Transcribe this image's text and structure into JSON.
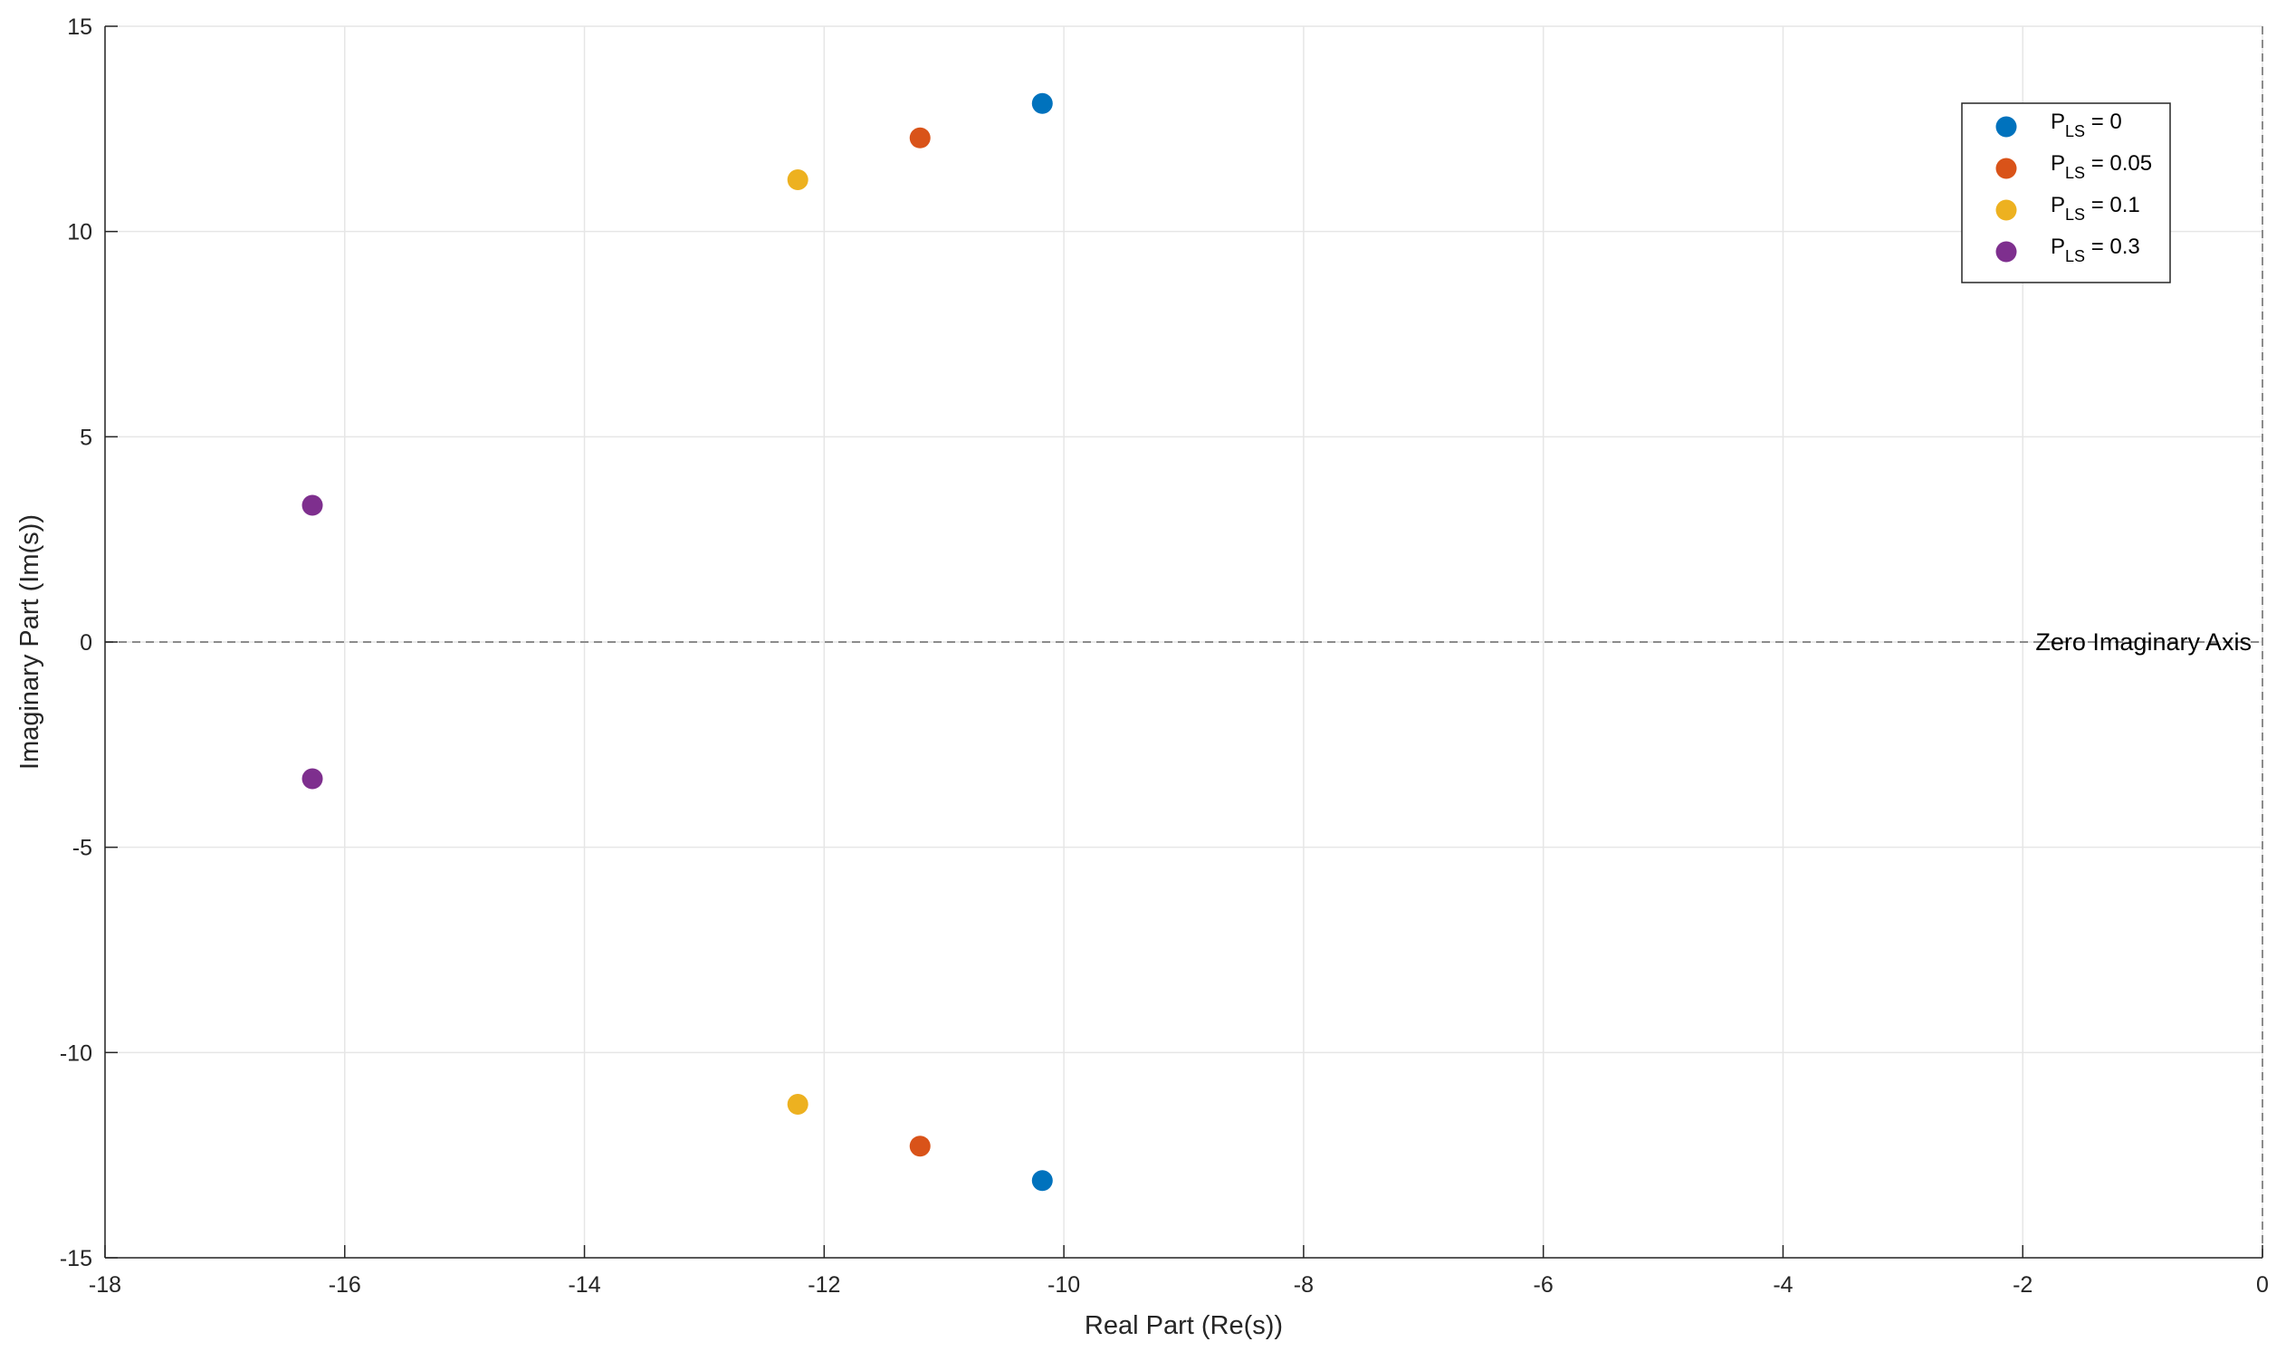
{
  "chart_data": {
    "type": "scatter",
    "title": "",
    "xlabel": "Real Part (Re(s))",
    "ylabel": "Imaginary Part (Im(s))",
    "xlim": [
      -18,
      0
    ],
    "ylim": [
      -15,
      15
    ],
    "xticks": [
      -18,
      -16,
      -14,
      -12,
      -10,
      -8,
      -6,
      -4,
      -2,
      0
    ],
    "yticks": [
      -15,
      -10,
      -5,
      0,
      5,
      10,
      15
    ],
    "grid": true,
    "legend_position": "top-right",
    "series": [
      {
        "name": "P_LS = 0",
        "legend_main": "P",
        "legend_sub": "LS",
        "legend_rest": " = 0",
        "color": "#0072BD",
        "points": [
          {
            "x": -10.18,
            "y": 13.12
          },
          {
            "x": -10.18,
            "y": -13.12
          }
        ]
      },
      {
        "name": "P_LS = 0.05",
        "legend_main": "P",
        "legend_sub": "LS",
        "legend_rest": " = 0.05",
        "color": "#D95319",
        "points": [
          {
            "x": -11.2,
            "y": 12.28
          },
          {
            "x": -11.2,
            "y": -12.28
          }
        ]
      },
      {
        "name": "P_LS = 0.1",
        "legend_main": "P",
        "legend_sub": "LS",
        "legend_rest": " = 0.1",
        "color": "#EDB120",
        "points": [
          {
            "x": -12.22,
            "y": 11.26
          },
          {
            "x": -12.22,
            "y": -11.26
          }
        ]
      },
      {
        "name": "P_LS = 0.3",
        "legend_main": "P",
        "legend_sub": "LS",
        "legend_rest": " = 0.3",
        "color": "#7E2F8E",
        "points": [
          {
            "x": -16.27,
            "y": 3.33
          },
          {
            "x": -16.27,
            "y": -3.33
          }
        ]
      }
    ],
    "reference_lines": [
      {
        "orientation": "horizontal",
        "value": 0,
        "style": "dashed",
        "label": "Zero Imaginary Axis"
      },
      {
        "orientation": "vertical",
        "value": 0,
        "style": "dashed"
      }
    ]
  }
}
